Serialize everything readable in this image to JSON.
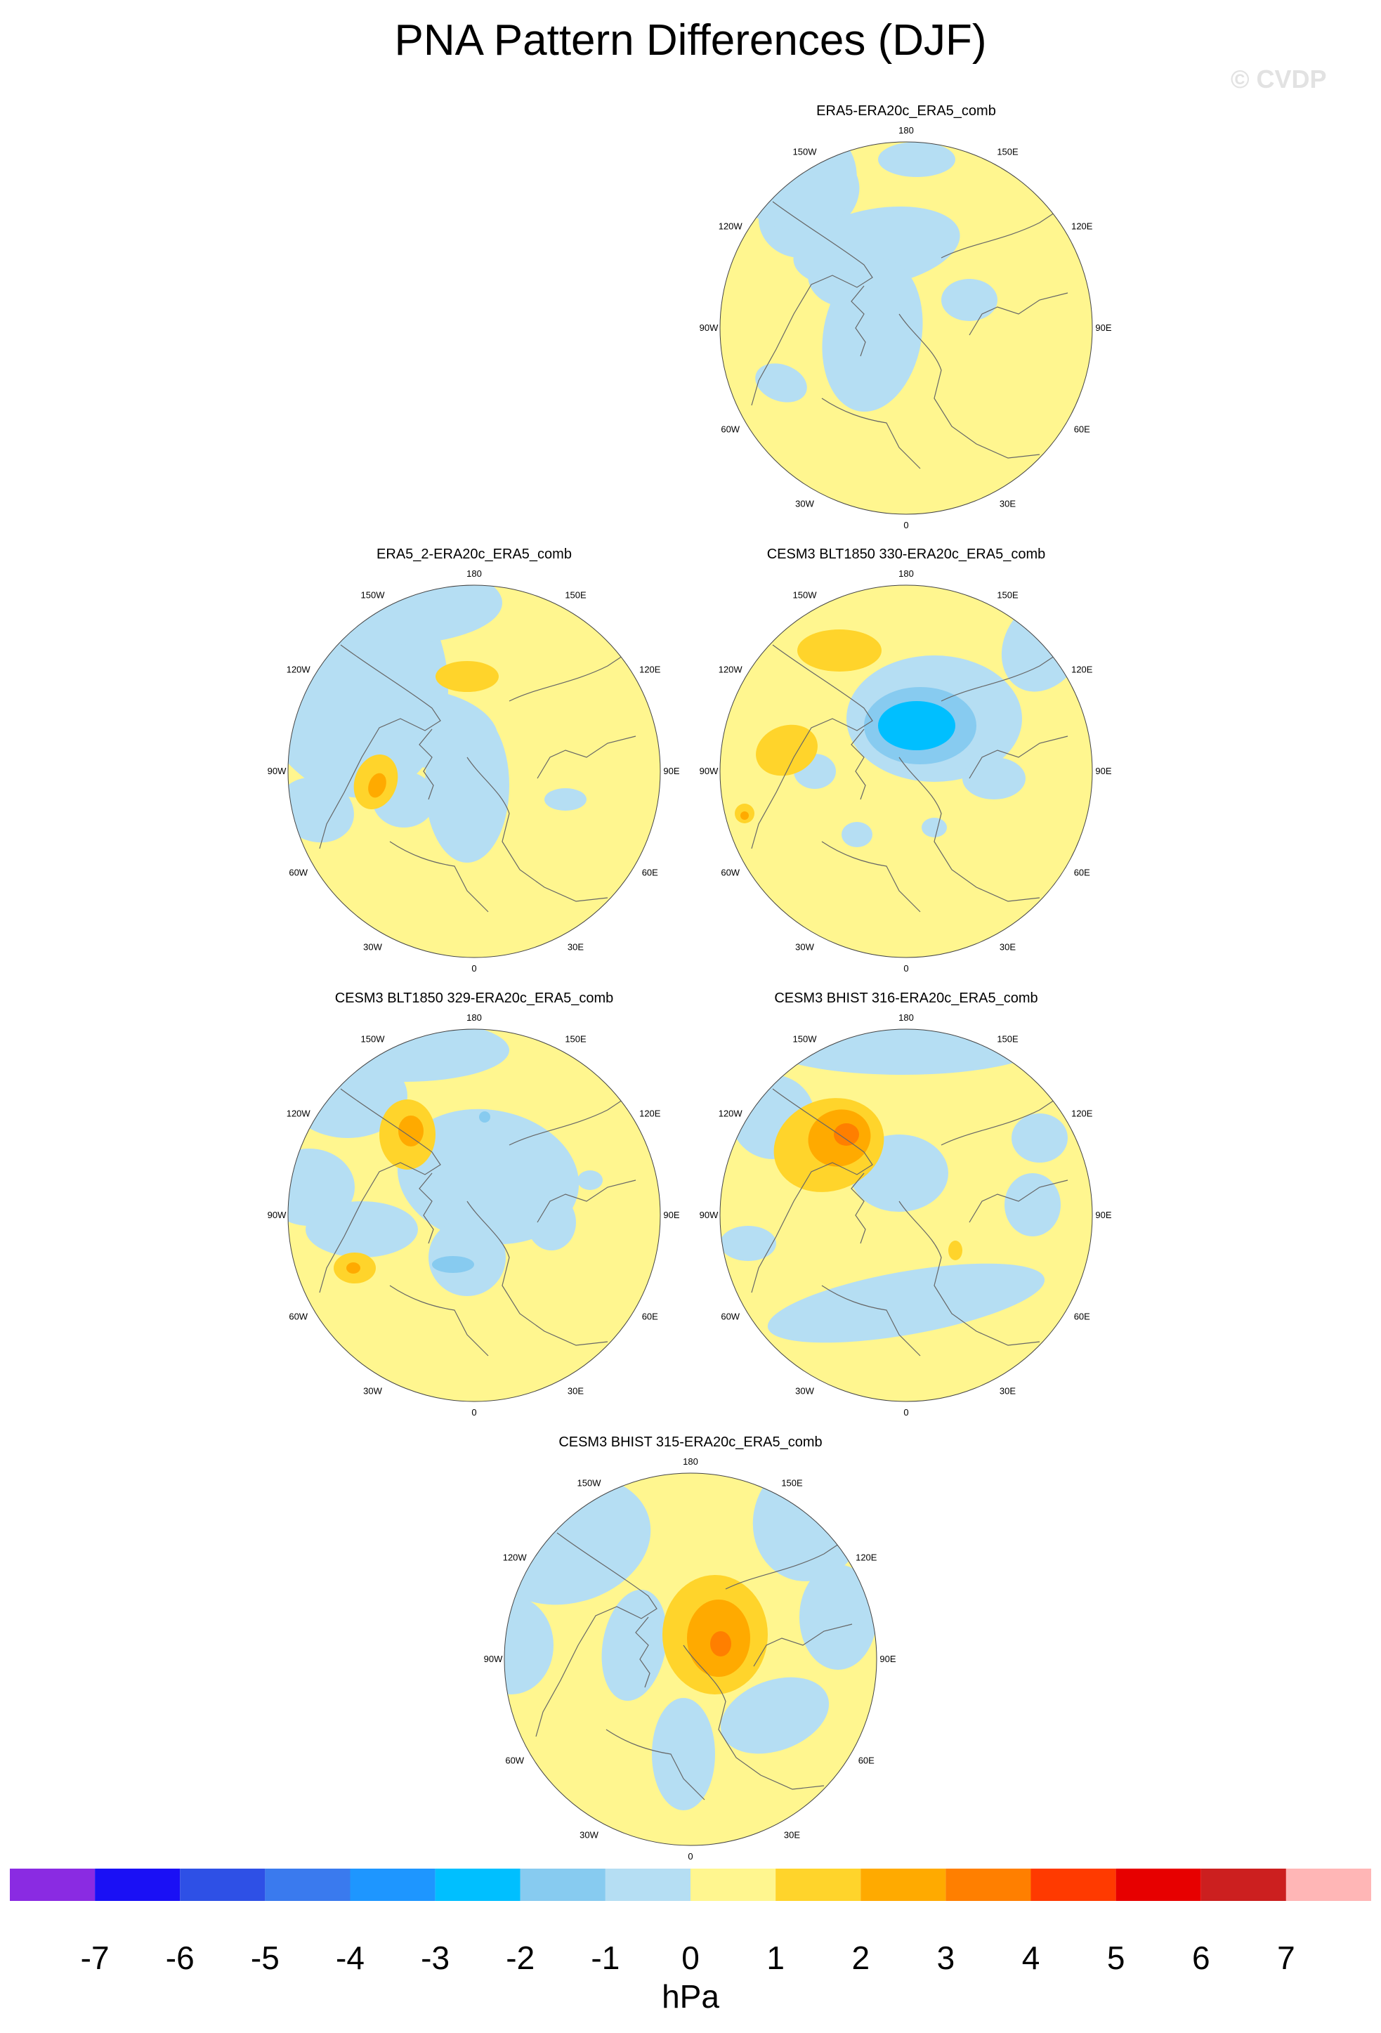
{
  "title": "PNA Pattern Differences (DJF)",
  "watermark": "© CVDP",
  "lon_labels": [
    "180",
    "150E",
    "120E",
    "90E",
    "60E",
    "30E",
    "0",
    "30W",
    "60W",
    "90W",
    "120W",
    "150W"
  ],
  "colors": {
    "neg7": "#8a2be2",
    "neg6": "#1a10f5",
    "neg5": "#2e50e6",
    "neg4": "#3a7aee",
    "neg3": "#1e96ff",
    "neg2": "#00bfff",
    "neg1": "#87cbf0",
    "neg0": "#b5def3",
    "pos0": "#fff68f",
    "pos1": "#ffd42b",
    "pos2": "#ffaa00",
    "pos3": "#ff7f00",
    "pos4": "#ff3a00",
    "pos5": "#e70000",
    "pos6": "#cc1f1f",
    "pos7": "#ffb6b6"
  },
  "panels": [
    {
      "id": "p1",
      "title": "ERA5-ERA20c_ERA5_comb"
    },
    {
      "id": "p2",
      "title": "ERA5_2-ERA20c_ERA5_comb"
    },
    {
      "id": "p3",
      "title": "CESM3 BLT1850 330-ERA20c_ERA5_comb"
    },
    {
      "id": "p4",
      "title": "CESM3 BLT1850 329-ERA20c_ERA5_comb"
    },
    {
      "id": "p5",
      "title": "CESM3 BHIST 316-ERA20c_ERA5_comb"
    },
    {
      "id": "p6",
      "title": "CESM3 BHIST 315-ERA20c_ERA5_comb"
    }
  ],
  "colorbar": {
    "ticks": [
      "-7",
      "-6",
      "-5",
      "-4",
      "-3",
      "-2",
      "-1",
      "0",
      "1",
      "2",
      "3",
      "4",
      "5",
      "6",
      "7"
    ],
    "bins": [
      "neg7",
      "neg6",
      "neg5",
      "neg4",
      "neg3",
      "neg2",
      "neg1",
      "neg0",
      "pos0",
      "pos1",
      "pos2",
      "pos3",
      "pos4",
      "pos5",
      "pos6",
      "pos7"
    ],
    "unit": "hPa"
  }
}
